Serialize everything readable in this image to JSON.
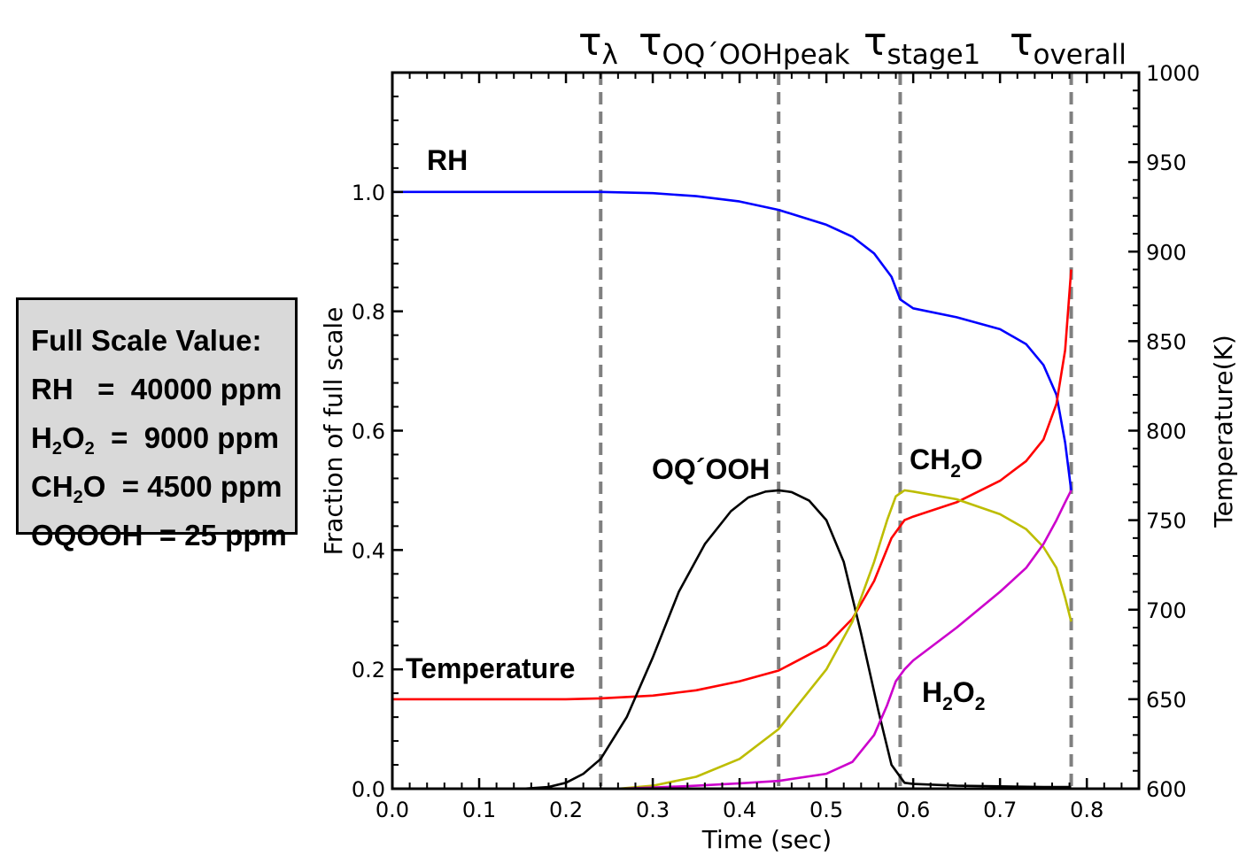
{
  "chart_data": {
    "type": "line",
    "xlabel": "Time (sec)",
    "ylabel": "Fraction of full scale",
    "y2label": "Temperature(K)",
    "xlim": [
      0.0,
      0.86
    ],
    "ylim": [
      0.0,
      1.2
    ],
    "y2lim": [
      600,
      1000
    ],
    "xticks": [
      0.0,
      0.1,
      0.2,
      0.3,
      0.4,
      0.5,
      0.6,
      0.7,
      0.8
    ],
    "xtick_labels": [
      "0.0",
      "0.1",
      "0.2",
      "0.3",
      "0.4",
      "0.5",
      "0.6",
      "0.7",
      "0.8"
    ],
    "yticks": [
      0.0,
      0.2,
      0.4,
      0.6,
      0.8,
      1.0
    ],
    "ytick_labels": [
      "0.0",
      "0.2",
      "0.4",
      "0.6",
      "0.8",
      "1.0"
    ],
    "y2ticks": [
      600,
      650,
      700,
      750,
      800,
      850,
      900,
      950,
      1000
    ],
    "y2tick_labels": [
      "600",
      "650",
      "700",
      "750",
      "800",
      "850",
      "900",
      "950",
      "1000"
    ],
    "vlines": [
      {
        "x": 0.24,
        "tau": "τ",
        "sub": "λ"
      },
      {
        "x": 0.445,
        "tau": "τ",
        "sub": "OQ´OOHpeak"
      },
      {
        "x": 0.585,
        "tau": "τ",
        "sub": "stage1"
      },
      {
        "x": 0.782,
        "tau": "τ",
        "sub": "overall"
      }
    ],
    "series": [
      {
        "name": "RH",
        "color": "#0000ff",
        "x": [
          0.0,
          0.1,
          0.2,
          0.24,
          0.3,
          0.35,
          0.4,
          0.445,
          0.5,
          0.53,
          0.555,
          0.575,
          0.585,
          0.6,
          0.65,
          0.7,
          0.73,
          0.75,
          0.765,
          0.775,
          0.782
        ],
        "y": [
          1.0,
          1.0,
          1.0,
          1.0,
          0.998,
          0.993,
          0.984,
          0.97,
          0.945,
          0.925,
          0.897,
          0.858,
          0.82,
          0.805,
          0.79,
          0.77,
          0.745,
          0.71,
          0.66,
          0.58,
          0.5
        ]
      },
      {
        "name": "Temperature",
        "color": "#ff0000",
        "axis": "y2",
        "x": [
          0.0,
          0.1,
          0.2,
          0.24,
          0.3,
          0.35,
          0.4,
          0.445,
          0.5,
          0.53,
          0.555,
          0.575,
          0.59,
          0.6,
          0.65,
          0.7,
          0.73,
          0.75,
          0.765,
          0.775,
          0.782
        ],
        "y": [
          650,
          650,
          650,
          650.5,
          652,
          655,
          660,
          666,
          680,
          695,
          716,
          740,
          750,
          752,
          760,
          772,
          783,
          795,
          815,
          845,
          890
        ]
      },
      {
        "name": "OQ´OOH",
        "color": "#000000",
        "x": [
          0.15,
          0.18,
          0.2,
          0.22,
          0.24,
          0.27,
          0.3,
          0.33,
          0.36,
          0.39,
          0.41,
          0.43,
          0.445,
          0.46,
          0.48,
          0.5,
          0.52,
          0.54,
          0.56,
          0.575,
          0.59,
          0.6,
          0.65,
          0.7,
          0.75,
          0.782
        ],
        "y": [
          0.0,
          0.003,
          0.01,
          0.025,
          0.05,
          0.12,
          0.22,
          0.33,
          0.41,
          0.465,
          0.488,
          0.498,
          0.5,
          0.497,
          0.483,
          0.45,
          0.38,
          0.26,
          0.13,
          0.04,
          0.01,
          0.008,
          0.005,
          0.004,
          0.003,
          0.003
        ]
      },
      {
        "name": "CH₂O",
        "color": "#bdbd00",
        "x": [
          0.26,
          0.3,
          0.35,
          0.4,
          0.445,
          0.5,
          0.53,
          0.555,
          0.57,
          0.58,
          0.59,
          0.6,
          0.65,
          0.7,
          0.73,
          0.75,
          0.765,
          0.775,
          0.782
        ],
        "y": [
          0.0,
          0.005,
          0.02,
          0.05,
          0.1,
          0.2,
          0.28,
          0.38,
          0.45,
          0.49,
          0.5,
          0.498,
          0.485,
          0.46,
          0.435,
          0.405,
          0.37,
          0.32,
          0.28
        ]
      },
      {
        "name": "H₂O₂",
        "color": "#cc00cc",
        "x": [
          0.26,
          0.3,
          0.35,
          0.4,
          0.445,
          0.5,
          0.53,
          0.555,
          0.57,
          0.58,
          0.59,
          0.6,
          0.65,
          0.7,
          0.73,
          0.75,
          0.765,
          0.775,
          0.782
        ],
        "y": [
          0.0,
          0.002,
          0.005,
          0.009,
          0.013,
          0.025,
          0.045,
          0.09,
          0.14,
          0.18,
          0.2,
          0.215,
          0.27,
          0.33,
          0.37,
          0.41,
          0.45,
          0.48,
          0.5
        ]
      }
    ],
    "labels": {
      "rh": "RH",
      "temperature": "Temperature",
      "oqooh": "OQ´OOH",
      "ch2o_main": "CH",
      "ch2o_sub": "2",
      "ch2o_tail": "O",
      "h2o2_a": "H",
      "h2o2_sub1": "2",
      "h2o2_b": "O",
      "h2o2_sub2": "2"
    }
  },
  "legend_box": {
    "title": "Full Scale Value:",
    "rh": "RH   =  40000 ppm",
    "h2o2_a": "H",
    "h2o2_sub1": "2",
    "h2o2_b": "O",
    "h2o2_sub2": "2",
    "h2o2_val": "  =  9000 ppm",
    "ch2o_a": "CH",
    "ch2o_sub": "2",
    "ch2o_b": "O  = 4500 ppm",
    "oqooh": "OQOOH  = 25 ppm"
  }
}
